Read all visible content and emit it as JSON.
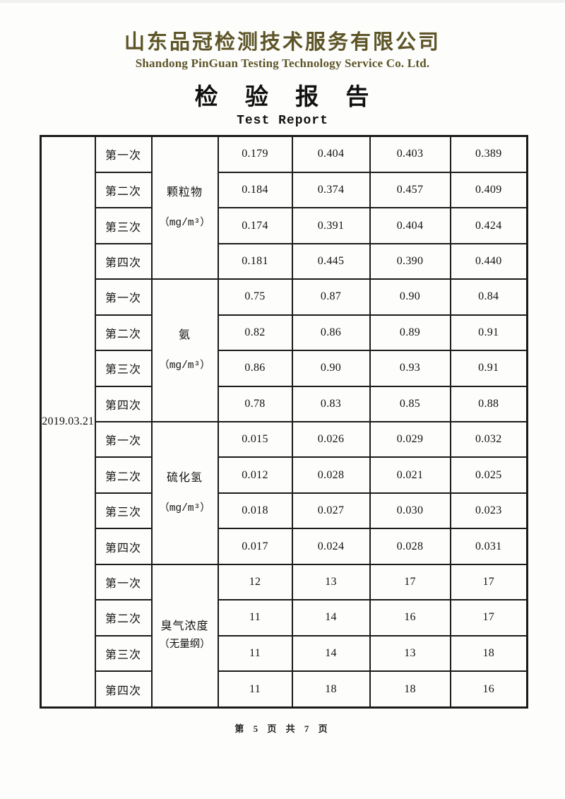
{
  "page": {
    "company_name_cn": "山东品冠检测技术服务有限公司",
    "company_name_en": "Shandong PinGuan Testing Technology Service Co. Ltd.",
    "report_title_cn": "检 验 报 告",
    "report_title_en": "Test Report",
    "page_footer": "第 5 页 共 7 页"
  },
  "colors": {
    "company_title": "#5d5527",
    "body_text": "#151515",
    "table_border": "#1b1b1b"
  },
  "table": {
    "date": "2019.03.21",
    "groups": [
      {
        "parameter": "颗粒物",
        "unit": "（mg/m³）",
        "rows": [
          {
            "trial": "第一次",
            "values": [
              "0.179",
              "0.404",
              "0.403",
              "0.389"
            ]
          },
          {
            "trial": "第二次",
            "values": [
              "0.184",
              "0.374",
              "0.457",
              "0.409"
            ]
          },
          {
            "trial": "第三次",
            "values": [
              "0.174",
              "0.391",
              "0.404",
              "0.424"
            ]
          },
          {
            "trial": "第四次",
            "values": [
              "0.181",
              "0.445",
              "0.390",
              "0.440"
            ]
          }
        ]
      },
      {
        "parameter": "氨",
        "unit": "（mg/m³）",
        "rows": [
          {
            "trial": "第一次",
            "values": [
              "0.75",
              "0.87",
              "0.90",
              "0.84"
            ]
          },
          {
            "trial": "第二次",
            "values": [
              "0.82",
              "0.86",
              "0.89",
              "0.91"
            ]
          },
          {
            "trial": "第三次",
            "values": [
              "0.86",
              "0.90",
              "0.93",
              "0.91"
            ]
          },
          {
            "trial": "第四次",
            "values": [
              "0.78",
              "0.83",
              "0.85",
              "0.88"
            ]
          }
        ]
      },
      {
        "parameter": "硫化氢",
        "unit": "（mg/m³）",
        "rows": [
          {
            "trial": "第一次",
            "values": [
              "0.015",
              "0.026",
              "0.029",
              "0.032"
            ]
          },
          {
            "trial": "第二次",
            "values": [
              "0.012",
              "0.028",
              "0.021",
              "0.025"
            ]
          },
          {
            "trial": "第三次",
            "values": [
              "0.018",
              "0.027",
              "0.030",
              "0.023"
            ]
          },
          {
            "trial": "第四次",
            "values": [
              "0.017",
              "0.024",
              "0.028",
              "0.031"
            ]
          }
        ]
      },
      {
        "parameter": "臭气浓度",
        "unit": "（无量纲）",
        "rows": [
          {
            "trial": "第一次",
            "values": [
              "12",
              "13",
              "17",
              "17"
            ]
          },
          {
            "trial": "第二次",
            "values": [
              "11",
              "14",
              "16",
              "17"
            ]
          },
          {
            "trial": "第三次",
            "values": [
              "11",
              "14",
              "13",
              "18"
            ]
          },
          {
            "trial": "第四次",
            "values": [
              "11",
              "18",
              "18",
              "16"
            ]
          }
        ]
      }
    ]
  }
}
